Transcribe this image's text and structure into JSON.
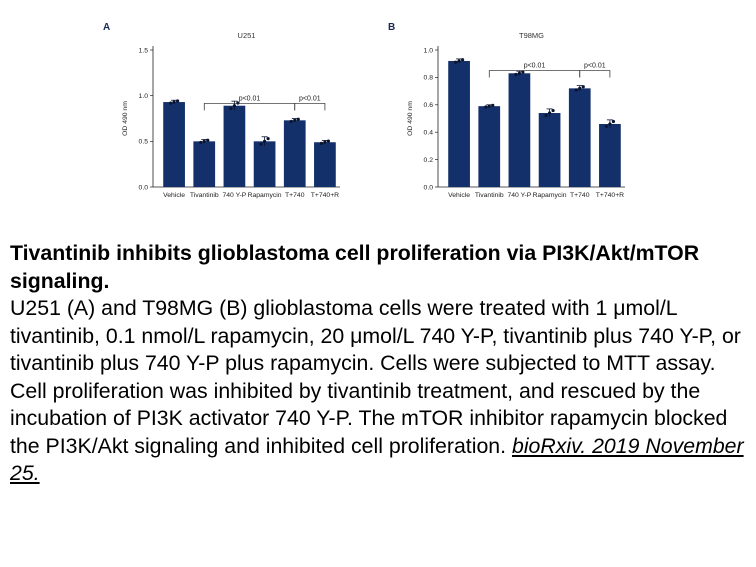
{
  "figure": {
    "colors": {
      "bar": "#14306a",
      "point": "#0a1430",
      "axis": "#222222"
    }
  },
  "chart_data": [
    {
      "type": "bar",
      "panel_letter": "A",
      "title": "U251",
      "ylabel": "OD 490 nm",
      "ylim": [
        0,
        1.5
      ],
      "yticks": [
        "0.0",
        "0.5",
        "1.0",
        "1.5"
      ],
      "categories": [
        "Vehicle",
        "Tivantinib",
        "740 Y-P",
        "Rapamycin",
        "T+740",
        "T+740+R"
      ],
      "values": [
        0.93,
        0.5,
        0.89,
        0.5,
        0.73,
        0.49
      ],
      "errors": [
        0.02,
        0.02,
        0.05,
        0.05,
        0.02,
        0.02
      ],
      "significance": [
        {
          "from": 1,
          "to": 4,
          "label": "p<0.01"
        },
        {
          "from": 4,
          "to": 5,
          "label": "p<0.01"
        }
      ]
    },
    {
      "type": "bar",
      "panel_letter": "B",
      "title": "T98MG",
      "ylabel": "OD 490 nm",
      "ylim": [
        0,
        1.0
      ],
      "yticks": [
        "0.0",
        "0.2",
        "0.4",
        "0.6",
        "0.8",
        "1.0"
      ],
      "categories": [
        "Vehicle",
        "Tivantinib",
        "740 Y-P",
        "Rapamycin",
        "T+740",
        "T+740+R"
      ],
      "values": [
        0.92,
        0.59,
        0.83,
        0.54,
        0.72,
        0.46
      ],
      "errors": [
        0.015,
        0.01,
        0.015,
        0.03,
        0.02,
        0.03
      ],
      "significance": [
        {
          "from": 1,
          "to": 4,
          "label": "p<0.01"
        },
        {
          "from": 4,
          "to": 5,
          "label": "p<0.01"
        }
      ]
    }
  ],
  "caption": {
    "title": "Tivantinib inhibits glioblastoma cell proliferation via PI3K/Akt/mTOR signaling.",
    "body": "U251 (A) and T98MG (B) glioblastoma cells were treated with 1 μmol/L tivantinib, 0.1 nmol/L rapamycin, 20 μmol/L 740 Y-P, tivantinib plus 740 Y-P, or tivantinib plus 740 Y-P plus rapamycin. Cells were subjected to MTT assay. Cell proliferation was inhibited by tivantinib treatment, and rescued by the incubation of PI3K activator 740 Y-P. The mTOR inhibitor rapamycin blocked the PI3K/Akt signaling and inhibited cell proliferation.",
    "source": "bioRxiv. 2019 November 25."
  }
}
